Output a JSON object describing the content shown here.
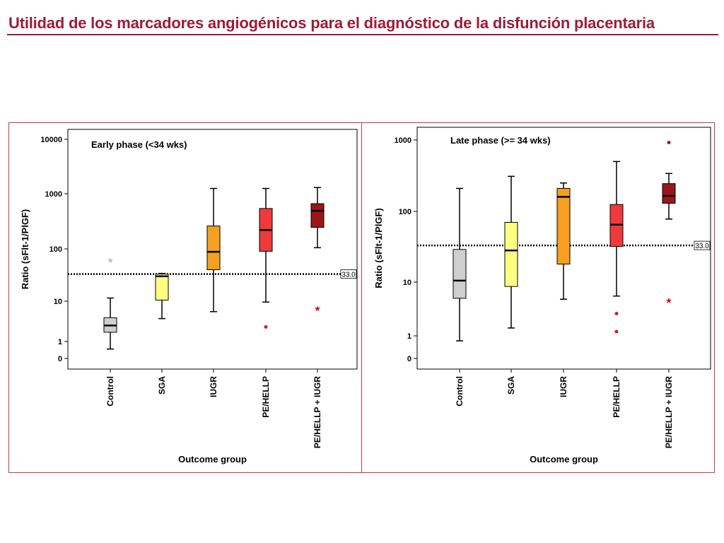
{
  "slide": {
    "title": "Utilidad de los marcadores angiogénicos para el diagnóstico de la disfunción placentaria"
  },
  "colors": {
    "title": "#9b1c3a",
    "frame": "#c0394b",
    "control": "#cfcfcf",
    "sga": "#ffff80",
    "iugr": "#f5a020",
    "pe_hellp": "#ee3a3a",
    "pe_hellp_iugr": "#9b1616"
  },
  "chart_data": [
    {
      "type": "box",
      "title": "Early phase (<34 wks)",
      "xlabel": "Outcome group",
      "ylabel": "Ratio (sFlt-1/PlGF)",
      "yscale": "log",
      "ytick_labels": [
        "0",
        "1",
        "10",
        "100",
        "1000",
        "10000"
      ],
      "ytick_values": [
        0.55,
        1,
        10,
        100,
        1000,
        10000
      ],
      "ylim": [
        0.5,
        12000
      ],
      "cutoff": {
        "value": 33,
        "label": "33.0",
        "style": "dotted"
      },
      "categories": [
        "Control",
        "SGA",
        "IUGR",
        "PE/HELLP",
        "PE/HELLP + IUGR"
      ],
      "boxes": [
        {
          "category": "Control",
          "color": "#cfcfcf",
          "whisker_low": 0.8,
          "q1": 1.7,
          "median": 2.5,
          "q3": 3.9,
          "whisker_high": 11.5,
          "outliers": [
            {
              "value": 60,
              "marker": "star",
              "color": "#bfbfbf"
            }
          ]
        },
        {
          "category": "SGA",
          "color": "#ffff80",
          "whisker_low": 3.7,
          "q1": 10.5,
          "median": 30,
          "q3": 33,
          "whisker_high": 34,
          "outliers": []
        },
        {
          "category": "IUGR",
          "color": "#f5a020",
          "whisker_low": 5.5,
          "q1": 40,
          "median": 88,
          "q3": 260,
          "whisker_high": 1250,
          "outliers": []
        },
        {
          "category": "PE/HELLP",
          "color": "#ee3a3a",
          "whisker_low": 9.5,
          "q1": 90,
          "median": 220,
          "q3": 540,
          "whisker_high": 1250,
          "outliers": [
            {
              "value": 2.3,
              "marker": "dot",
              "color": "#cc2222"
            }
          ]
        },
        {
          "category": "PE/HELLP + IUGR",
          "color": "#9b1616",
          "whisker_low": 105,
          "q1": 245,
          "median": 490,
          "q3": 660,
          "whisker_high": 1300,
          "outliers": [
            {
              "value": 6.5,
              "marker": "star",
              "color": "#cc2222"
            }
          ]
        }
      ]
    },
    {
      "type": "box",
      "title": "Late phase (>= 34 wks)",
      "xlabel": "Outcome group",
      "ylabel": "Ratio (sFlt-1/PlGF)",
      "yscale": "log",
      "ytick_labels": [
        "0",
        "1",
        "10",
        "100",
        "1000"
      ],
      "ytick_values": [
        0.55,
        1,
        10,
        100,
        1000
      ],
      "ylim": [
        0.5,
        1300
      ],
      "cutoff": {
        "value": 33,
        "label": "33.0",
        "style": "dotted"
      },
      "categories": [
        "Control",
        "SGA",
        "IUGR",
        "PE/HELLP",
        "PE/HELLP + IUGR"
      ],
      "boxes": [
        {
          "category": "Control",
          "color": "#cfcfcf",
          "whisker_low": 0.9,
          "q1": 5,
          "median": 10.5,
          "q3": 29,
          "whisker_high": 210,
          "outliers": []
        },
        {
          "category": "SGA",
          "color": "#ffff80",
          "whisker_low": 1.4,
          "q1": 8.3,
          "median": 28,
          "q3": 70,
          "whisker_high": 310,
          "outliers": []
        },
        {
          "category": "IUGR",
          "color": "#f5a020",
          "whisker_low": 4.8,
          "q1": 18,
          "median": 160,
          "q3": 210,
          "whisker_high": 250,
          "outliers": []
        },
        {
          "category": "PE/HELLP",
          "color": "#ee3a3a",
          "whisker_low": 5.5,
          "q1": 32,
          "median": 65,
          "q3": 125,
          "whisker_high": 500,
          "outliers": [
            {
              "value": 2.6,
              "marker": "dot",
              "color": "#cc2222"
            },
            {
              "value": 1.2,
              "marker": "dot",
              "color": "#cc2222"
            }
          ]
        },
        {
          "category": "PE/HELLP + IUGR",
          "color": "#9b1616",
          "whisker_low": 78,
          "q1": 130,
          "median": 165,
          "q3": 245,
          "whisker_high": 340,
          "outliers": [
            {
              "value": 920,
              "marker": "dot",
              "color": "#aa1a1a"
            },
            {
              "value": 4.5,
              "marker": "star",
              "color": "#cc2222"
            }
          ]
        }
      ]
    }
  ]
}
